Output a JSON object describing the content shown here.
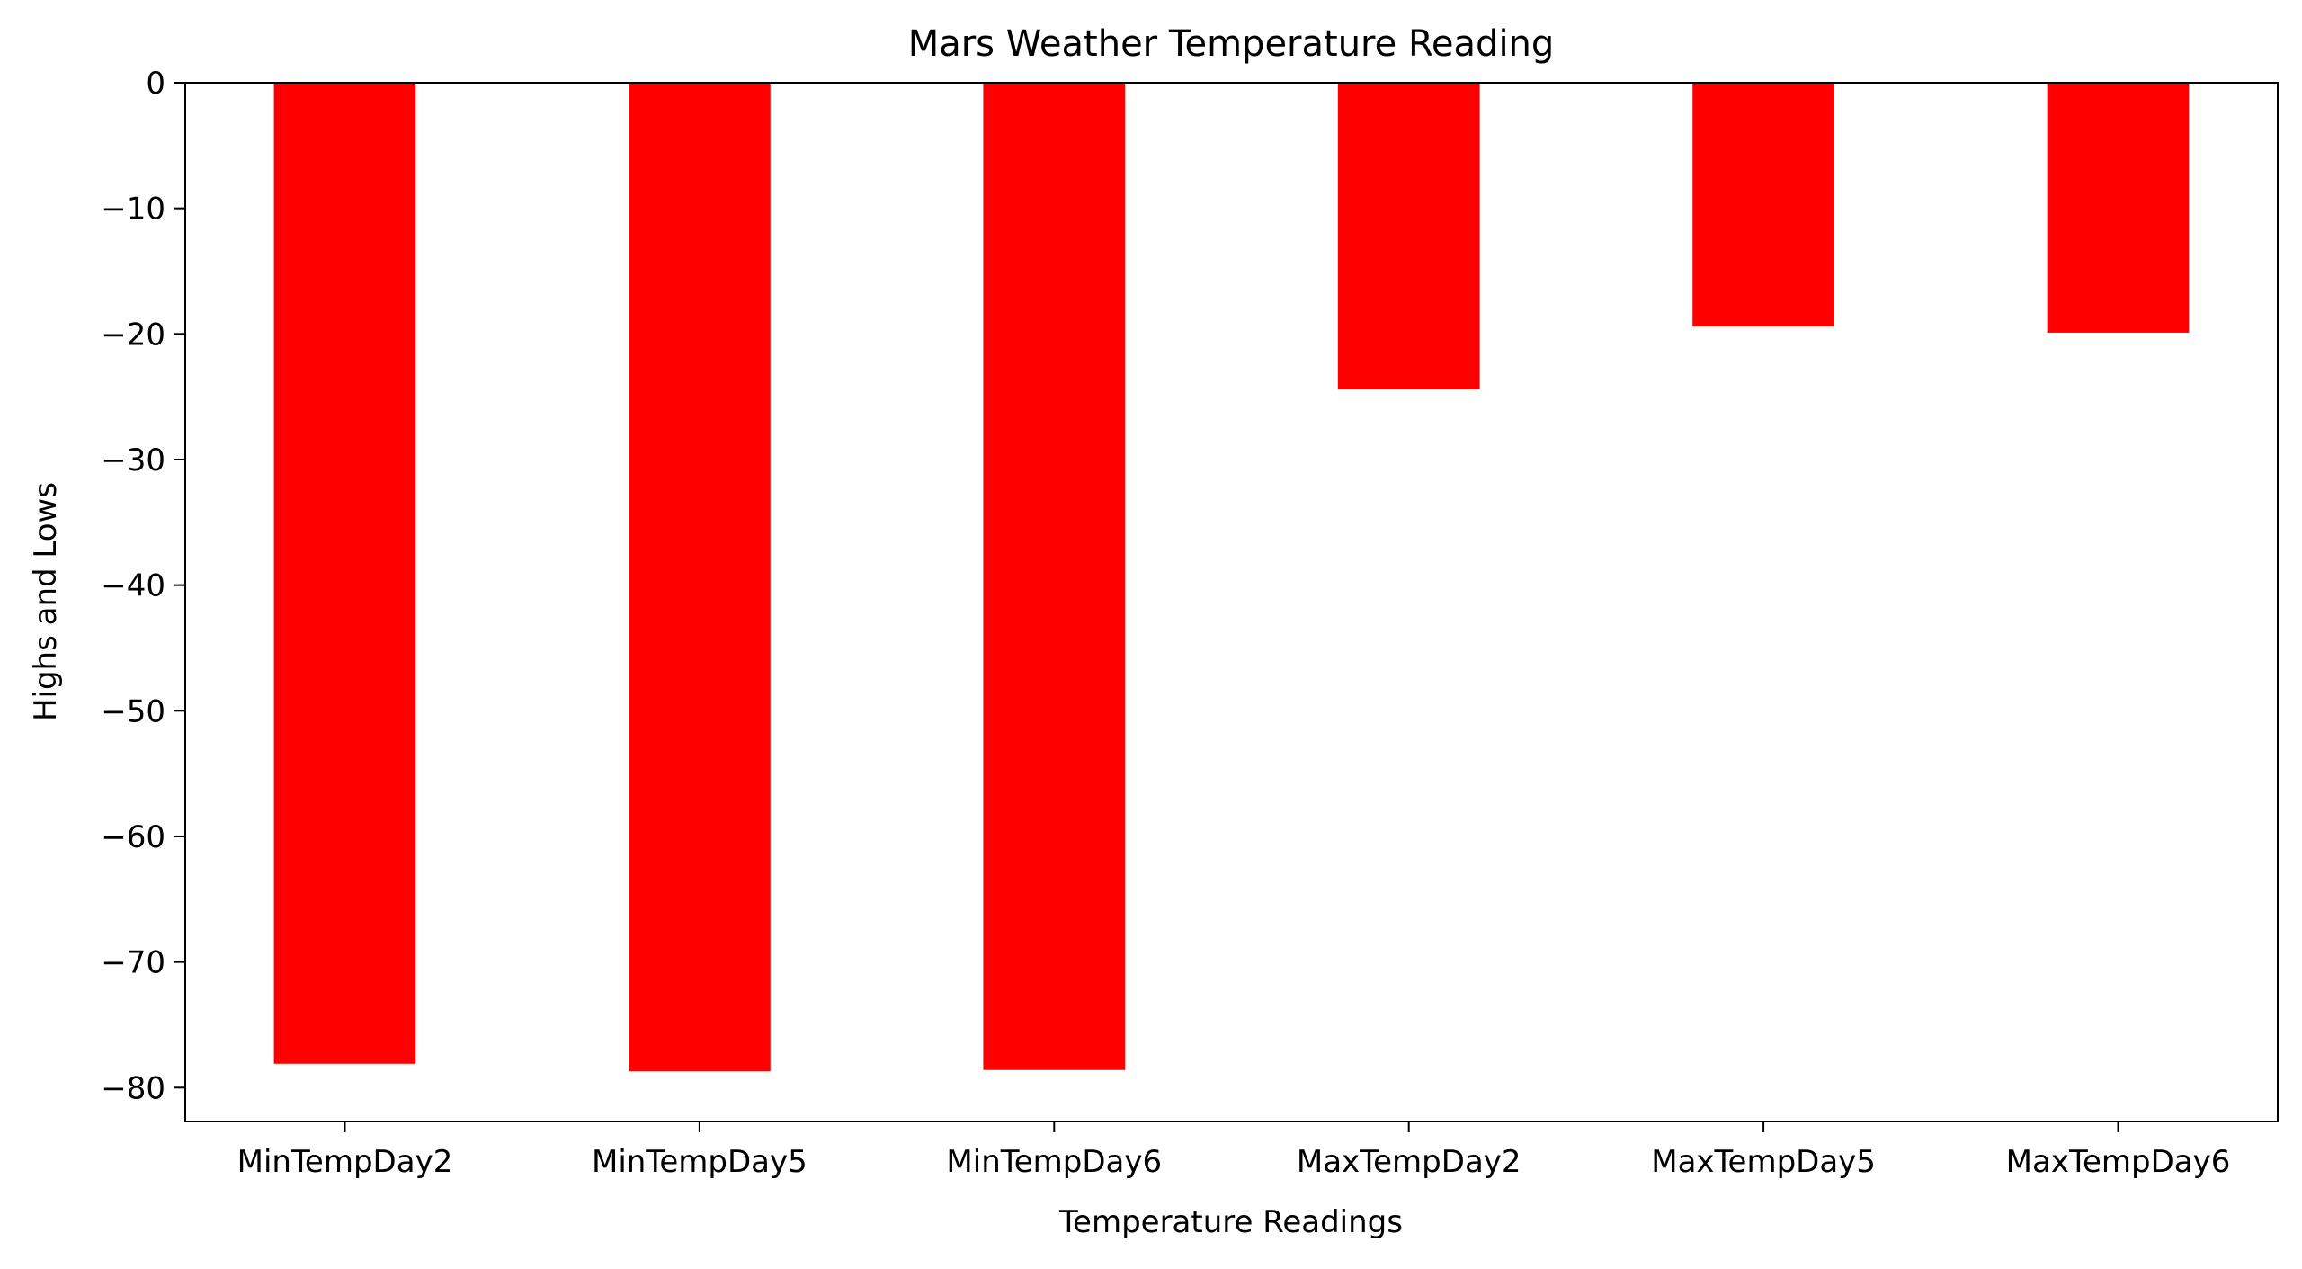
{
  "chart_data": {
    "type": "bar",
    "title": "Mars Weather Temperature Reading",
    "xlabel": "Temperature Readings",
    "ylabel": "Highs and Lows",
    "categories": [
      "MinTempDay2",
      "MinTempDay5",
      "MinTempDay6",
      "MaxTempDay2",
      "MaxTempDay5",
      "MaxTempDay6"
    ],
    "values": [
      -78.1,
      -78.7,
      -78.6,
      -24.4,
      -19.4,
      -19.9
    ],
    "ylim": [
      -82.7,
      0
    ],
    "yticks": [
      0,
      -10,
      -20,
      -30,
      -40,
      -50,
      -60,
      -70,
      -80
    ],
    "ytick_labels": [
      "0",
      "−10",
      "−20",
      "−30",
      "−40",
      "−50",
      "−60",
      "−70",
      "−80"
    ],
    "bar_color": "#ff0000",
    "grid": false,
    "legend": "none"
  }
}
